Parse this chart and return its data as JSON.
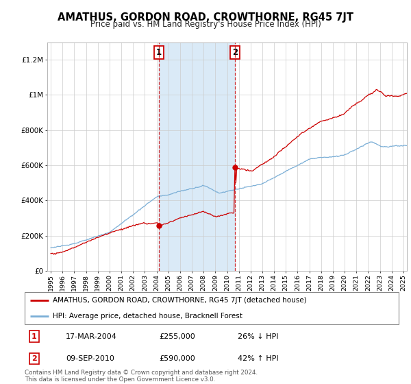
{
  "title": "AMATHUS, GORDON ROAD, CROWTHORNE, RG45 7JT",
  "subtitle": "Price paid vs. HM Land Registry's House Price Index (HPI)",
  "property_label": "AMATHUS, GORDON ROAD, CROWTHORNE, RG45 7JT (detached house)",
  "hpi_label": "HPI: Average price, detached house, Bracknell Forest",
  "footnote": "Contains HM Land Registry data © Crown copyright and database right 2024.\nThis data is licensed under the Open Government Licence v3.0.",
  "transaction1": {
    "label": "1",
    "date": "17-MAR-2004",
    "price": "£255,000",
    "hpi": "26% ↓ HPI",
    "year": 2004.21
  },
  "transaction2": {
    "label": "2",
    "date": "09-SEP-2010",
    "price": "£590,000",
    "hpi": "42% ↑ HPI",
    "year": 2010.69
  },
  "property_color": "#cc0000",
  "hpi_color": "#7aaed6",
  "shading_color": "#daeaf7",
  "ylim": [
    0,
    1300000
  ],
  "yticks": [
    0,
    200000,
    400000,
    600000,
    800000,
    1000000,
    1200000
  ],
  "ytick_labels": [
    "£0",
    "£200K",
    "£400K",
    "£600K",
    "£800K",
    "£1M",
    "£1.2M"
  ],
  "xlim_start": 1994.7,
  "xlim_end": 2025.3,
  "background_color": "#ffffff",
  "grid_color": "#cccccc"
}
